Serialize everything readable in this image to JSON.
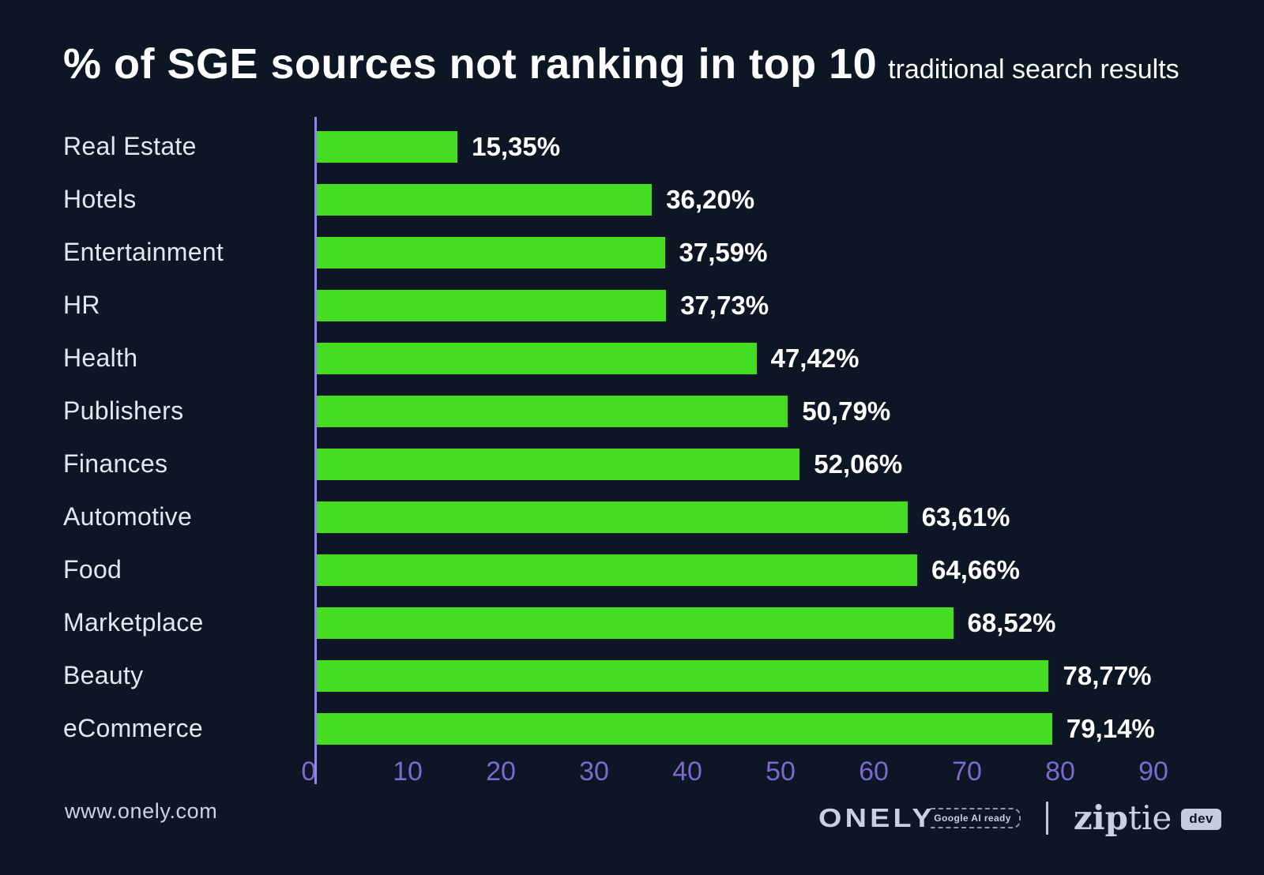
{
  "page": {
    "background": "#0c1624"
  },
  "title": {
    "main": "% of SGE sources not ranking in top 10",
    "subtitle": "traditional search results"
  },
  "chart_data": {
    "type": "bar",
    "orientation": "horizontal",
    "title": "% of SGE sources not ranking in top 10 traditional search results",
    "categories": [
      "Real Estate",
      "Hotels",
      "Entertainment",
      "HR",
      "Health",
      "Publishers",
      "Finances",
      "Automotive",
      "Food",
      "Marketplace",
      "Beauty",
      "eCommerce"
    ],
    "values": [
      15.35,
      36.2,
      37.59,
      37.73,
      47.42,
      50.79,
      52.06,
      63.61,
      64.66,
      68.52,
      78.77,
      79.14
    ],
    "value_labels": [
      "15,35%",
      "36,20%",
      "37,59%",
      "37,73%",
      "47,42%",
      "50,79%",
      "52,06%",
      "63,61%",
      "64,66%",
      "68,52%",
      "78,77%",
      "79,14%"
    ],
    "x_ticks": [
      "0",
      "10",
      "20",
      "30",
      "40",
      "50",
      "60",
      "70",
      "80",
      "90"
    ],
    "xlim": [
      0,
      90
    ],
    "xlabel": "",
    "ylabel": "",
    "grid": false,
    "legend": false,
    "bar_color": "#44dd22",
    "axis_color": "#9584ea",
    "tick_color": "#7c69cf"
  },
  "footer": {
    "website": "www.onely.com",
    "onely_logo": "ONELY",
    "google_badge": "Google AI ready",
    "ziptie_zip": "zip",
    "ziptie_tie": "tie",
    "dev_badge": "dev"
  }
}
